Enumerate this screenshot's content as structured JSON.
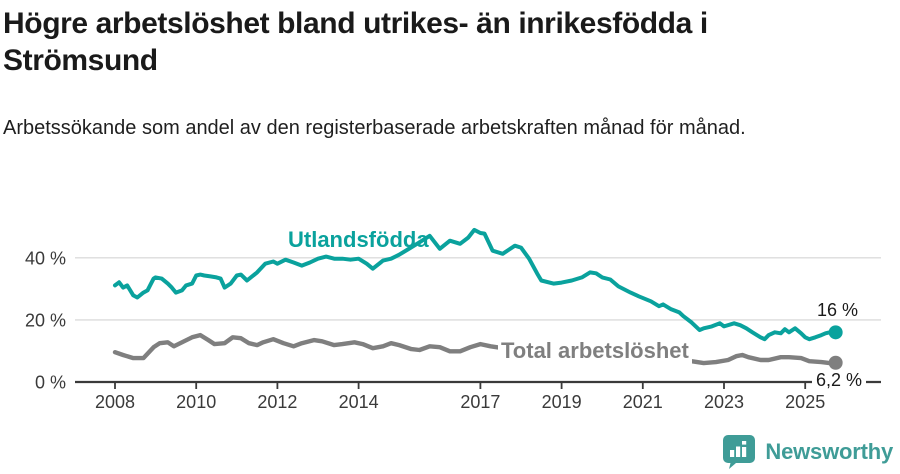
{
  "header": {
    "title": "Högre arbetslöshet bland utrikes- än inrikesfödda i Strömsund",
    "subtitle": "Arbetssökande som andel av den registerbaserade arbetskraften månad för månad."
  },
  "chart_data": {
    "type": "line",
    "title": "Högre arbetslöshet bland utrikes- än inrikesfödda i Strömsund",
    "subtitle": "Arbetssökande som andel av den registerbaserade arbetskraften månad för månad.",
    "unit": "%",
    "grid": "horizontal-only",
    "x_ticks": [
      2008,
      2010,
      2012,
      2014,
      2017,
      2019,
      2021,
      2023,
      2025
    ],
    "x_tick_labels": [
      "2008",
      "2010",
      "2012",
      "2014",
      "2017",
      "2019",
      "2021",
      "2023",
      "2025"
    ],
    "y_ticks": [
      0,
      20,
      40
    ],
    "y_tick_labels": [
      "0 %",
      "20 %",
      "40 %"
    ],
    "ylim": [
      0,
      52
    ],
    "xlim": [
      2007.9,
      2026.9
    ],
    "series": [
      {
        "name": "Utlandsfödda",
        "color": "#0aa29d",
        "end_label": "16 %",
        "end_value": 16,
        "points": [
          [
            2008.0,
            31.1
          ],
          [
            2008.1,
            32.1
          ],
          [
            2008.2,
            30.4
          ],
          [
            2008.3,
            31.1
          ],
          [
            2008.45,
            27.9
          ],
          [
            2008.55,
            27.2
          ],
          [
            2008.7,
            28.8
          ],
          [
            2008.8,
            29.5
          ],
          [
            2008.95,
            33.3
          ],
          [
            2009.0,
            33.7
          ],
          [
            2009.15,
            33.3
          ],
          [
            2009.3,
            31.7
          ],
          [
            2009.4,
            30.4
          ],
          [
            2009.5,
            28.8
          ],
          [
            2009.65,
            29.5
          ],
          [
            2009.75,
            31.1
          ],
          [
            2009.9,
            31.7
          ],
          [
            2010.0,
            34.3
          ],
          [
            2010.1,
            34.6
          ],
          [
            2010.2,
            34.3
          ],
          [
            2010.35,
            34.0
          ],
          [
            2010.5,
            33.7
          ],
          [
            2010.6,
            33.3
          ],
          [
            2010.7,
            30.4
          ],
          [
            2010.85,
            31.7
          ],
          [
            2011.0,
            34.3
          ],
          [
            2011.1,
            34.6
          ],
          [
            2011.25,
            32.7
          ],
          [
            2011.5,
            35.3
          ],
          [
            2011.7,
            38.1
          ],
          [
            2011.9,
            38.8
          ],
          [
            2012.0,
            38.1
          ],
          [
            2012.2,
            39.4
          ],
          [
            2012.4,
            38.5
          ],
          [
            2012.6,
            37.5
          ],
          [
            2012.8,
            38.5
          ],
          [
            2013.0,
            39.7
          ],
          [
            2013.2,
            40.4
          ],
          [
            2013.4,
            39.7
          ],
          [
            2013.6,
            39.7
          ],
          [
            2013.8,
            39.4
          ],
          [
            2014.0,
            39.7
          ],
          [
            2014.2,
            38.1
          ],
          [
            2014.35,
            36.5
          ],
          [
            2014.6,
            39.1
          ],
          [
            2014.8,
            39.7
          ],
          [
            2015.0,
            41.0
          ],
          [
            2015.25,
            43.0
          ],
          [
            2015.5,
            45.0
          ],
          [
            2015.75,
            47.1
          ],
          [
            2016.0,
            42.9
          ],
          [
            2016.25,
            45.5
          ],
          [
            2016.5,
            44.5
          ],
          [
            2016.7,
            46.5
          ],
          [
            2016.85,
            49.0
          ],
          [
            2017.0,
            48.0
          ],
          [
            2017.1,
            47.8
          ],
          [
            2017.3,
            42.3
          ],
          [
            2017.55,
            41.3
          ],
          [
            2017.85,
            43.9
          ],
          [
            2018.0,
            43.3
          ],
          [
            2018.2,
            39.7
          ],
          [
            2018.4,
            34.9
          ],
          [
            2018.5,
            32.7
          ],
          [
            2018.8,
            31.7
          ],
          [
            2019.0,
            32.0
          ],
          [
            2019.25,
            32.7
          ],
          [
            2019.5,
            33.7
          ],
          [
            2019.7,
            35.3
          ],
          [
            2019.85,
            35.0
          ],
          [
            2020.0,
            33.7
          ],
          [
            2020.2,
            33.0
          ],
          [
            2020.4,
            30.8
          ],
          [
            2020.7,
            28.8
          ],
          [
            2020.9,
            27.6
          ],
          [
            2021.2,
            26.0
          ],
          [
            2021.4,
            24.4
          ],
          [
            2021.5,
            25.0
          ],
          [
            2021.7,
            23.4
          ],
          [
            2021.9,
            22.4
          ],
          [
            2022.0,
            21.2
          ],
          [
            2022.2,
            19.2
          ],
          [
            2022.4,
            16.7
          ],
          [
            2022.5,
            17.3
          ],
          [
            2022.7,
            17.9
          ],
          [
            2022.9,
            18.9
          ],
          [
            2023.0,
            17.9
          ],
          [
            2023.25,
            18.9
          ],
          [
            2023.4,
            18.3
          ],
          [
            2023.55,
            17.3
          ],
          [
            2023.7,
            16.0
          ],
          [
            2023.9,
            14.4
          ],
          [
            2024.0,
            13.8
          ],
          [
            2024.1,
            15.1
          ],
          [
            2024.25,
            16.0
          ],
          [
            2024.4,
            15.7
          ],
          [
            2024.5,
            17.0
          ],
          [
            2024.6,
            16.0
          ],
          [
            2024.75,
            17.3
          ],
          [
            2024.9,
            15.7
          ],
          [
            2025.0,
            14.4
          ],
          [
            2025.1,
            13.8
          ],
          [
            2025.25,
            14.4
          ],
          [
            2025.4,
            15.1
          ],
          [
            2025.5,
            15.7
          ],
          [
            2025.6,
            16.0
          ],
          [
            2025.75,
            16.0
          ]
        ]
      },
      {
        "name": "Total arbetslöshet",
        "color": "#7f7f7f",
        "end_label": "6,2 %",
        "end_value": 6.2,
        "points": [
          [
            2008.0,
            9.6
          ],
          [
            2008.2,
            8.7
          ],
          [
            2008.45,
            7.7
          ],
          [
            2008.7,
            7.7
          ],
          [
            2008.95,
            11.2
          ],
          [
            2009.1,
            12.5
          ],
          [
            2009.3,
            12.8
          ],
          [
            2009.45,
            11.5
          ],
          [
            2009.7,
            13.1
          ],
          [
            2009.9,
            14.4
          ],
          [
            2010.1,
            15.1
          ],
          [
            2010.3,
            13.5
          ],
          [
            2010.45,
            12.2
          ],
          [
            2010.7,
            12.5
          ],
          [
            2010.9,
            14.4
          ],
          [
            2011.1,
            14.1
          ],
          [
            2011.3,
            12.5
          ],
          [
            2011.5,
            11.9
          ],
          [
            2011.65,
            12.8
          ],
          [
            2011.9,
            13.8
          ],
          [
            2012.15,
            12.5
          ],
          [
            2012.4,
            11.5
          ],
          [
            2012.6,
            12.5
          ],
          [
            2012.9,
            13.5
          ],
          [
            2013.1,
            13.1
          ],
          [
            2013.4,
            11.9
          ],
          [
            2013.6,
            12.2
          ],
          [
            2013.9,
            12.8
          ],
          [
            2014.1,
            12.2
          ],
          [
            2014.35,
            10.9
          ],
          [
            2014.6,
            11.5
          ],
          [
            2014.8,
            12.5
          ],
          [
            2015.0,
            11.9
          ],
          [
            2015.3,
            10.6
          ],
          [
            2015.5,
            10.3
          ],
          [
            2015.75,
            11.5
          ],
          [
            2016.0,
            11.2
          ],
          [
            2016.25,
            9.9
          ],
          [
            2016.5,
            9.9
          ],
          [
            2016.75,
            11.2
          ],
          [
            2017.0,
            12.2
          ],
          [
            2017.25,
            11.5
          ],
          [
            2017.5,
            11.0
          ],
          [
            2017.9,
            11.5
          ],
          [
            2018.2,
            10.5
          ],
          [
            2018.5,
            9.8
          ],
          [
            2018.9,
            10.2
          ],
          [
            2019.2,
            9.8
          ],
          [
            2019.5,
            9.2
          ],
          [
            2019.9,
            9.5
          ],
          [
            2020.3,
            9.8
          ],
          [
            2020.7,
            9.0
          ],
          [
            2021.0,
            8.3
          ],
          [
            2021.3,
            7.8
          ],
          [
            2021.6,
            7.6
          ],
          [
            2021.9,
            7.5
          ],
          [
            2022.2,
            6.7
          ],
          [
            2022.5,
            6.1
          ],
          [
            2022.8,
            6.4
          ],
          [
            2023.1,
            7.1
          ],
          [
            2023.3,
            8.3
          ],
          [
            2023.45,
            8.7
          ],
          [
            2023.6,
            8.0
          ],
          [
            2023.9,
            7.1
          ],
          [
            2024.1,
            7.1
          ],
          [
            2024.4,
            8.0
          ],
          [
            2024.6,
            8.0
          ],
          [
            2024.9,
            7.7
          ],
          [
            2025.1,
            6.7
          ],
          [
            2025.4,
            6.4
          ],
          [
            2025.6,
            6.1
          ],
          [
            2025.75,
            6.2
          ]
        ]
      }
    ]
  },
  "footer": {
    "brand": "Newsworthy",
    "brand_color": "#3f9c97",
    "icon": "chart-speech-bubble"
  }
}
